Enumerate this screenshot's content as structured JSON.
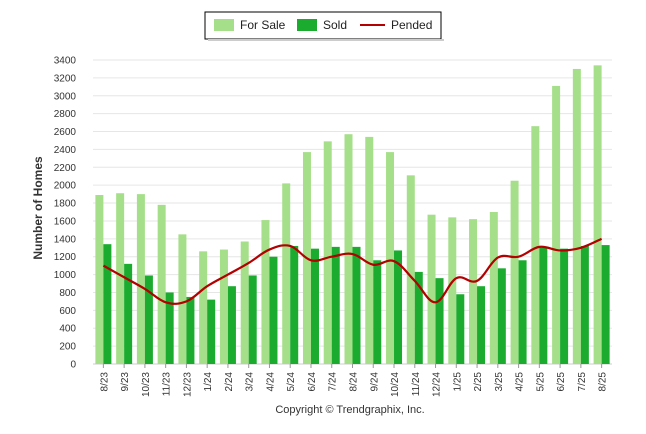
{
  "chart_data": {
    "type": "bar",
    "categories": [
      "8/23",
      "9/23",
      "10/23",
      "11/23",
      "12/23",
      "1/24",
      "2/24",
      "3/24",
      "4/24",
      "5/24",
      "6/24",
      "7/24",
      "8/24",
      "9/24",
      "10/24",
      "11/24",
      "12/24",
      "1/25",
      "2/25",
      "3/25",
      "4/25",
      "5/25",
      "6/25",
      "7/25",
      "8/25"
    ],
    "series": [
      {
        "name": "For Sale",
        "kind": "bar",
        "color": "#a6df8a",
        "values": [
          1890,
          1910,
          1900,
          1780,
          1450,
          1260,
          1280,
          1370,
          1610,
          2020,
          2370,
          2490,
          2570,
          2540,
          2370,
          2110,
          1670,
          1640,
          1620,
          1700,
          2050,
          2660,
          3110,
          3300,
          3340
        ]
      },
      {
        "name": "Sold",
        "kind": "bar",
        "color": "#1aab2f",
        "values": [
          1340,
          1120,
          990,
          800,
          750,
          720,
          870,
          990,
          1200,
          1320,
          1290,
          1310,
          1310,
          1160,
          1270,
          1030,
          960,
          780,
          870,
          1070,
          1160,
          1300,
          1290,
          1320,
          1330
        ]
      },
      {
        "name": "Pended",
        "kind": "line",
        "color": "#b30000",
        "values": [
          1100,
          970,
          840,
          690,
          700,
          870,
          1000,
          1130,
          1280,
          1320,
          1160,
          1200,
          1230,
          1110,
          1150,
          930,
          690,
          960,
          930,
          1190,
          1200,
          1310,
          1270,
          1300,
          1400
        ]
      }
    ],
    "ylabel": "Number of Homes",
    "xlabel": "",
    "ylim": [
      0,
      3400
    ],
    "yticks": [
      0,
      200,
      400,
      600,
      800,
      1000,
      1200,
      1400,
      1600,
      1800,
      2000,
      2200,
      2400,
      2600,
      2800,
      3000,
      3200,
      3400
    ],
    "grid": true,
    "legend_position": "top-center"
  },
  "footer": {
    "copyright": "Copyright © Trendgraphix, Inc."
  }
}
